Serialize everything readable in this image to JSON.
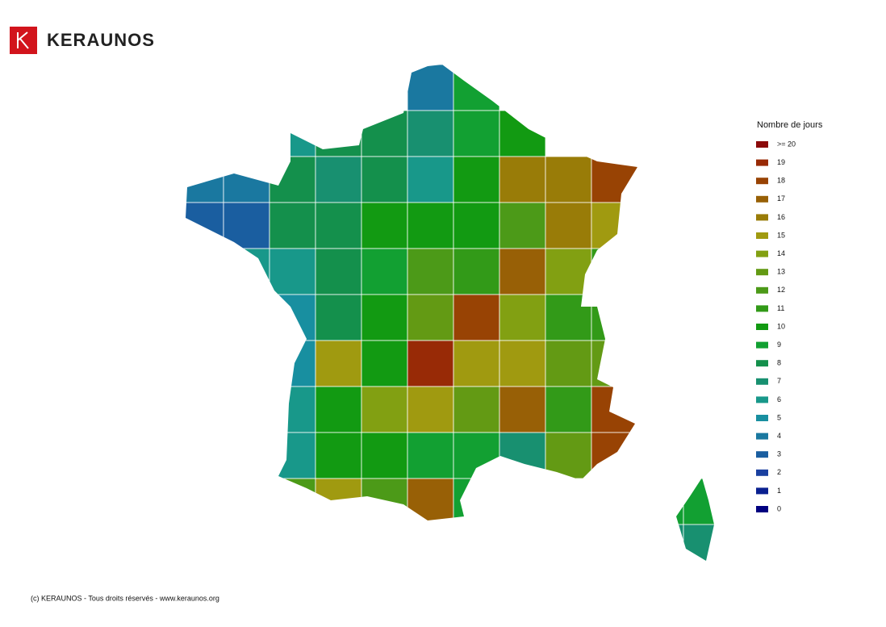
{
  "header": {
    "brand": "KERAUNOS"
  },
  "map": {
    "legend_title": "Nombre de jours",
    "legend": [
      {
        "value": 20,
        "label": ">= 20",
        "color": "#8b0a0a"
      },
      {
        "value": 19,
        "color": "#982a06"
      },
      {
        "value": 18,
        "color": "#984304"
      },
      {
        "value": 17,
        "color": "#986006"
      },
      {
        "value": 16,
        "color": "#997c08"
      },
      {
        "value": 15,
        "color": "#a09a10"
      },
      {
        "value": 14,
        "color": "#82a012"
      },
      {
        "value": 13,
        "color": "#639a14"
      },
      {
        "value": 12,
        "color": "#4c9a18"
      },
      {
        "value": 11,
        "color": "#329a18"
      },
      {
        "value": 10,
        "color": "#129a12"
      },
      {
        "value": 9,
        "color": "#12a032"
      },
      {
        "value": 8,
        "color": "#14904c"
      },
      {
        "value": 7,
        "color": "#189070"
      },
      {
        "value": 6,
        "color": "#18988a"
      },
      {
        "value": 5,
        "color": "#188fa0"
      },
      {
        "value": 4,
        "color": "#1a78a0"
      },
      {
        "value": 3,
        "color": "#1a5ea0"
      },
      {
        "value": 2,
        "color": "#1a40a0"
      },
      {
        "value": 1,
        "color": "#0a2090"
      },
      {
        "value": 0,
        "color": "#000080"
      }
    ],
    "zones": [
      4,
      9,
      6,
      8,
      8,
      7,
      9,
      10,
      4,
      4,
      8,
      7,
      8,
      6,
      10,
      16,
      16,
      18,
      3,
      3,
      8,
      8,
      10,
      10,
      10,
      12,
      16,
      15,
      6,
      6,
      8,
      9,
      12,
      11,
      17,
      14,
      11,
      5,
      8,
      10,
      13,
      18,
      14,
      11,
      11,
      5,
      15,
      10,
      19,
      15,
      15,
      13,
      13,
      6,
      10,
      14,
      15,
      13,
      17,
      11,
      18,
      6,
      10,
      10,
      9,
      9,
      7,
      13,
      18,
      12,
      15,
      12,
      17,
      9,
      9,
      9,
      7,
      7
    ]
  },
  "footer": "(c) KERAUNOS - Tous droits réservés - www.keraunos.org"
}
